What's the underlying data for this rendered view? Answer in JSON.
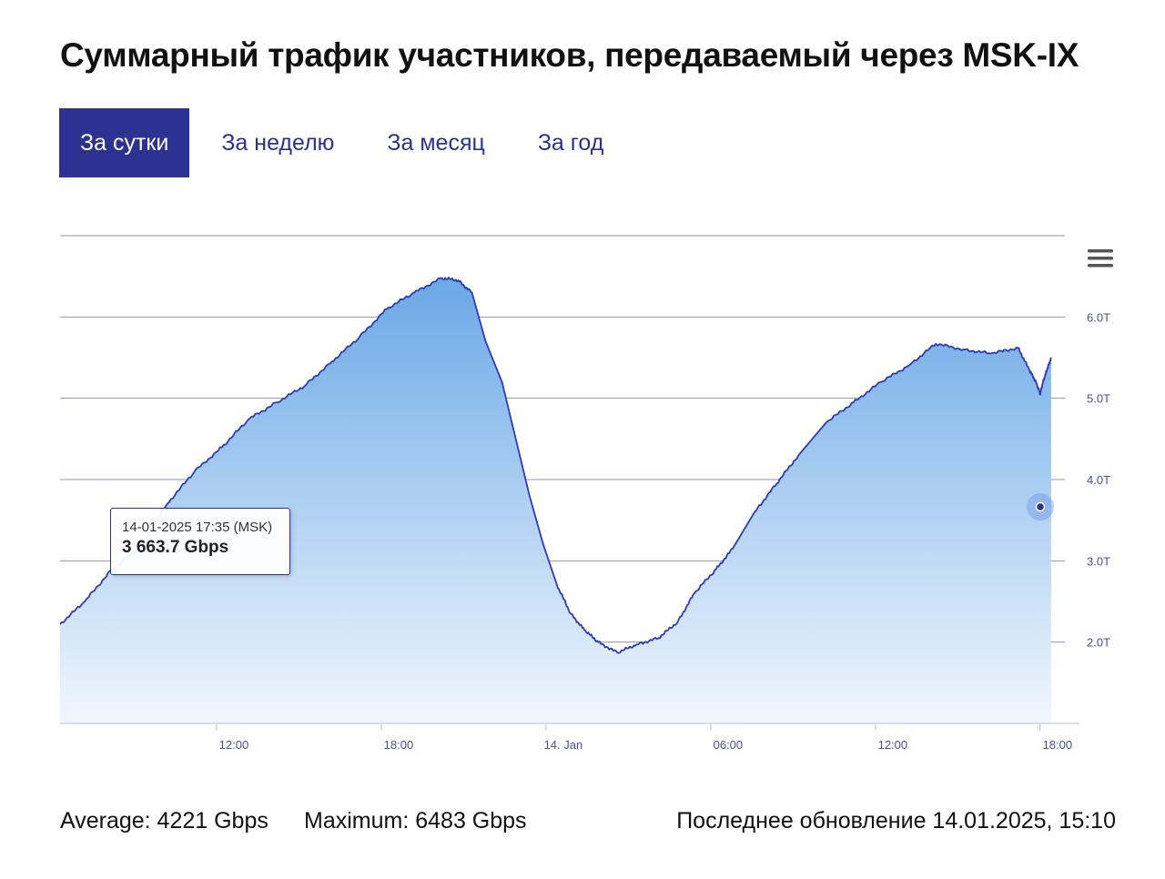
{
  "title": "Суммарный трафик участников, передаваемый через MSK-IX",
  "tabs": [
    {
      "label": "За сутки",
      "active": true
    },
    {
      "label": "За неделю",
      "active": false
    },
    {
      "label": "За месяц",
      "active": false
    },
    {
      "label": "За год",
      "active": false
    }
  ],
  "tooltip": {
    "time": "14-01-2025 17:35 (MSK)",
    "value": "3 663.7 Gbps"
  },
  "footer": {
    "average": "Average: 4221 Gbps",
    "maximum": "Maximum: 6483 Gbps",
    "updated": "Последнее обновление 14.01.2025, 15:10"
  },
  "colors": {
    "accent": "#2d3192",
    "line": "#2e3bb7",
    "fill_top": "#6aa8e6",
    "fill_bottom": "#eef5fd",
    "grid": "#8f93c8"
  },
  "chart_data": {
    "type": "area",
    "x_ticks": [
      "12:00",
      "18:00",
      "14. Jan",
      "06:00",
      "12:00",
      "18:00"
    ],
    "x_tick_hours": [
      12,
      18,
      24,
      30,
      36,
      42
    ],
    "y_ticks": [
      "2.0T",
      "3.0T",
      "4.0T",
      "5.0T",
      "6.0T"
    ],
    "y_tick_values": [
      2,
      3,
      4,
      5,
      6
    ],
    "xlim": [
      6.3,
      42.9
    ],
    "ylim": [
      1.0,
      7.0
    ],
    "grid": true,
    "y_axis_side": "right",
    "unit": "Tbps",
    "series": [
      {
        "x": [
          6.3,
          7.2,
          8.2,
          9.2,
          10.2,
          11.2,
          12.2,
          13.2,
          14.2,
          15.2,
          16.2,
          17.2,
          18.2,
          19.2,
          20.2,
          20.8,
          21.3,
          21.8,
          22.4,
          22.9,
          23.4,
          23.9,
          24.4,
          24.9,
          25.4,
          25.9,
          26.6,
          27.3,
          28.1,
          28.8,
          29.4,
          30.2,
          30.8,
          31.6,
          32.4,
          33.2,
          34.2,
          35.2,
          36.2,
          37.2,
          38.2,
          39.2,
          40.2,
          41.2,
          41.6,
          41.85,
          42.0,
          42.1,
          42.25,
          42.4
        ],
        "y": [
          2.22,
          2.5,
          2.9,
          3.15,
          3.7,
          4.1,
          4.4,
          4.75,
          4.95,
          5.15,
          5.45,
          5.75,
          6.1,
          6.3,
          6.48,
          6.45,
          6.3,
          5.7,
          5.2,
          4.5,
          3.8,
          3.2,
          2.7,
          2.35,
          2.15,
          2.0,
          1.87,
          1.97,
          2.05,
          2.25,
          2.6,
          2.9,
          3.15,
          3.6,
          3.95,
          4.3,
          4.7,
          4.95,
          5.2,
          5.4,
          5.67,
          5.6,
          5.55,
          5.62,
          5.35,
          5.2,
          5.05,
          5.2,
          5.35,
          5.5
        ]
      }
    ]
  }
}
